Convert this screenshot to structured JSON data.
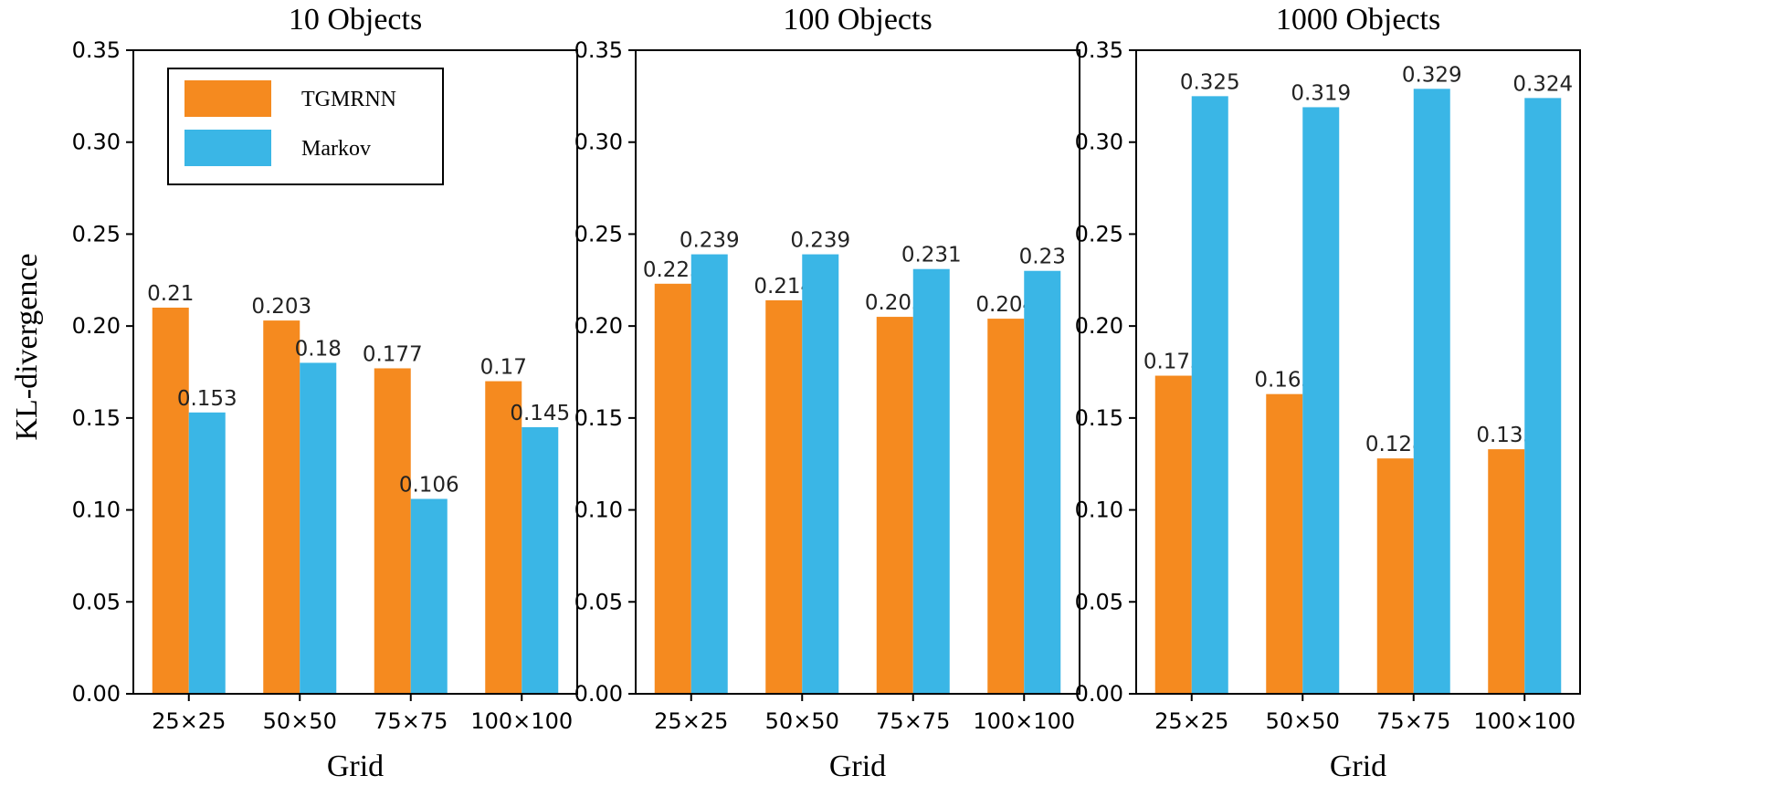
{
  "figure": {
    "ylabel": "KL-divergence",
    "series_colors": {
      "TGMRNN": "#f58a1f",
      "Markov": "#3ab6e6"
    },
    "legend_placement": "upper-left of first panel"
  },
  "chart_data": [
    {
      "type": "bar",
      "title": "10 Objects",
      "xlabel": "Grid",
      "ylabel": "KL-divergence",
      "ylim": [
        0,
        0.35
      ],
      "yticks": [
        "0.00",
        "0.05",
        "0.10",
        "0.15",
        "0.20",
        "0.25",
        "0.30",
        "0.35"
      ],
      "categories": [
        "25×25",
        "50×50",
        "75×75",
        "100×100"
      ],
      "series": [
        {
          "name": "TGMRNN",
          "values": [
            0.21,
            0.203,
            0.177,
            0.17
          ],
          "labels": [
            "0.21",
            "0.203",
            "0.177",
            "0.17"
          ]
        },
        {
          "name": "Markov",
          "values": [
            0.153,
            0.18,
            0.106,
            0.145
          ],
          "labels": [
            "0.153",
            "0.18",
            "0.106",
            "0.145"
          ]
        }
      ],
      "legend": [
        "TGMRNN",
        "Markov"
      ]
    },
    {
      "type": "bar",
      "title": "100 Objects",
      "xlabel": "Grid",
      "ylim": [
        0,
        0.35
      ],
      "yticks": [
        "0.00",
        "0.05",
        "0.10",
        "0.15",
        "0.20",
        "0.25",
        "0.30",
        "0.35"
      ],
      "categories": [
        "25×25",
        "50×50",
        "75×75",
        "100×100"
      ],
      "series": [
        {
          "name": "TGMRNN",
          "values": [
            0.223,
            0.214,
            0.205,
            0.204
          ],
          "labels": [
            "0.223",
            "0.214",
            "0.205",
            "0.204"
          ]
        },
        {
          "name": "Markov",
          "values": [
            0.239,
            0.239,
            0.231,
            0.23
          ],
          "labels": [
            "0.239",
            "0.239",
            "0.231",
            "0.23"
          ]
        }
      ]
    },
    {
      "type": "bar",
      "title": "1000 Objects",
      "xlabel": "Grid",
      "ylim": [
        0,
        0.35
      ],
      "yticks": [
        "0.00",
        "0.05",
        "0.10",
        "0.15",
        "0.20",
        "0.25",
        "0.30",
        "0.35"
      ],
      "categories": [
        "25×25",
        "50×50",
        "75×75",
        "100×100"
      ],
      "series": [
        {
          "name": "TGMRNN",
          "values": [
            0.173,
            0.163,
            0.128,
            0.133
          ],
          "labels": [
            "0.173",
            "0.163",
            "0.128",
            "0.133"
          ]
        },
        {
          "name": "Markov",
          "values": [
            0.325,
            0.319,
            0.329,
            0.324
          ],
          "labels": [
            "0.325",
            "0.319",
            "0.329",
            "0.324"
          ]
        }
      ]
    }
  ]
}
